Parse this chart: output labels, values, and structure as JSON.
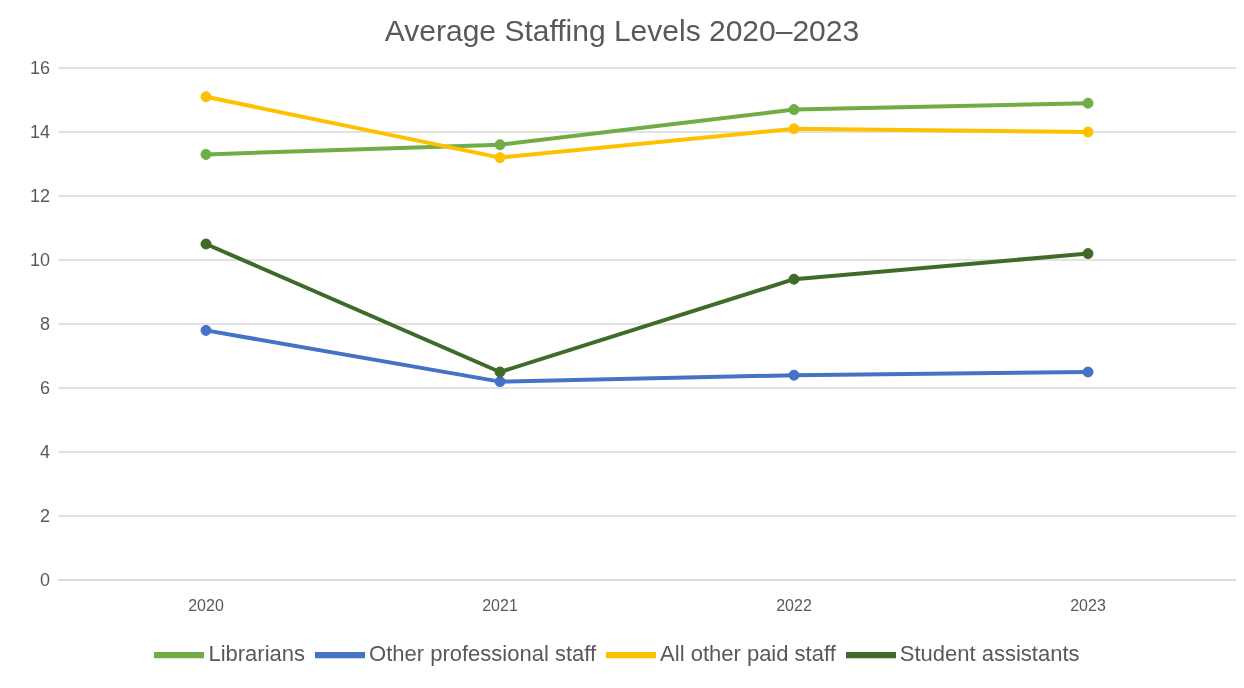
{
  "chart_data": {
    "type": "line",
    "title": "Average Staffing Levels 2020–2023",
    "categories": [
      "2020",
      "2021",
      "2022",
      "2023"
    ],
    "series": [
      {
        "name": "Librarians",
        "color": "#70ad47",
        "values": [
          13.3,
          13.6,
          14.7,
          14.9
        ]
      },
      {
        "name": "Other professional staff",
        "color": "#4472c4",
        "values": [
          7.8,
          6.2,
          6.4,
          6.5
        ]
      },
      {
        "name": "All other paid staff",
        "color": "#ffc000",
        "values": [
          15.1,
          13.2,
          14.1,
          14.0
        ]
      },
      {
        "name": "Student assistants",
        "color": "#3f6b2a",
        "values": [
          10.5,
          6.5,
          9.4,
          10.2
        ]
      }
    ],
    "ylim": [
      0,
      16
    ],
    "yticks": [
      0,
      2,
      4,
      6,
      8,
      10,
      12,
      14,
      16
    ],
    "grid": "y",
    "legend": "bottom",
    "marker": "circle",
    "line_style": "solid"
  }
}
